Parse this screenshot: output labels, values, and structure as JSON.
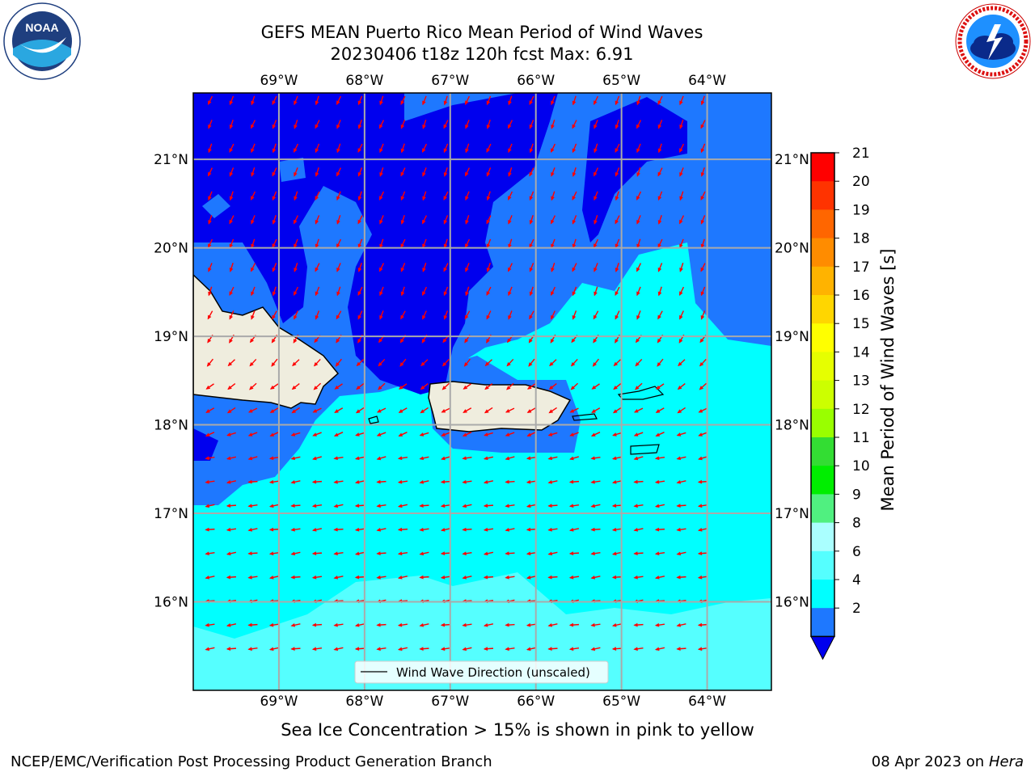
{
  "header": {
    "title_line1": "GEFS MEAN Puerto Rico Mean Period of Wind Waves",
    "title_line2": "20230406 t18z 120h fcst   Max: 6.91"
  },
  "logos": {
    "left": {
      "name": "noaa-logo",
      "text": "NOAA",
      "ring_text": "NATIONAL OCEANIC AND ATMOSPHERIC ADMINISTRATION · U.S. DEPARTMENT OF COMMERCE"
    },
    "right": {
      "name": "nws-logo",
      "ring_text": "NATIONAL WEATHER SERVICE"
    }
  },
  "map": {
    "lon_labels": [
      "69°W",
      "68°W",
      "67°W",
      "66°W",
      "65°W",
      "64°W"
    ],
    "lat_labels": [
      "21°N",
      "20°N",
      "19°N",
      "18°N",
      "17°N",
      "16°N"
    ],
    "lon_values": [
      -69,
      -68,
      -67,
      -66,
      -65,
      -64
    ],
    "lat_values": [
      21,
      20,
      19,
      18,
      17,
      16
    ],
    "lon_range": [
      -70,
      -63.25
    ],
    "lat_range": [
      15,
      21.75
    ],
    "legend_text": "Wind Wave Direction (unscaled)",
    "colors": {
      "dark_blue": "#0000ee",
      "mid_blue": "#1e78ff",
      "cyan": "#00ffff",
      "light_cyan": "#55ffff",
      "land": "#efedde",
      "arrow": "#ff0000"
    }
  },
  "colorbar": {
    "label": "Mean Period of Wind Waves [s]",
    "ticks": [
      "21",
      "20",
      "19",
      "18",
      "17",
      "16",
      "15",
      "14",
      "13",
      "12",
      "11",
      "10",
      "9",
      "8",
      "6",
      "4",
      "2"
    ],
    "colors": [
      "#ff0000",
      "#ff3300",
      "#ff6600",
      "#ff8c00",
      "#ffb300",
      "#ffd600",
      "#ffff00",
      "#e6ff00",
      "#ccff00",
      "#99ff00",
      "#33dd33",
      "#00ee00",
      "#50f080",
      "#aaffff",
      "#55ffff",
      "#00ffff",
      "#1e78ff"
    ],
    "extend_color": "#0000ee"
  },
  "footer": {
    "note": "Sea Ice Concentration > 15% is shown in pink to yellow",
    "left": "NCEP/EMC/Verification Post Processing Product Generation Branch",
    "right_date": "08 Apr 2023 on ",
    "right_host": "Hera"
  }
}
